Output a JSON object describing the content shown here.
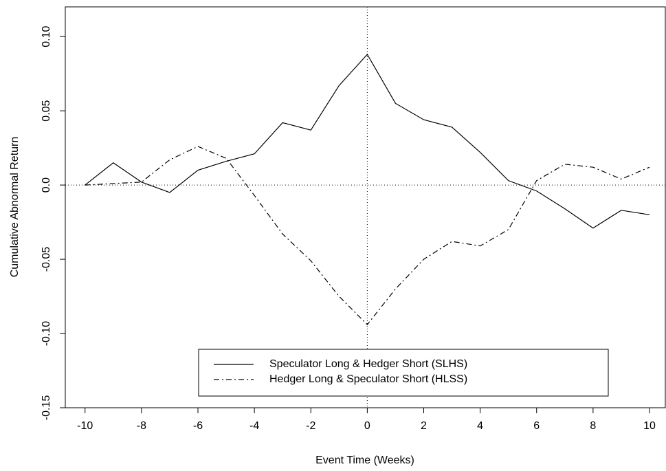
{
  "chart_data": {
    "type": "line",
    "x_label": "Event Time (Weeks)",
    "y_label": "Cumulative Abnormal Return",
    "x": [
      -10,
      -9,
      -8,
      -7,
      -6,
      -5,
      -4,
      -3,
      -2,
      -1,
      0,
      1,
      2,
      3,
      4,
      5,
      6,
      7,
      8,
      9,
      10
    ],
    "series": [
      {
        "name": "Speculator Long & Hedger Short (SLHS)",
        "color": "#000000",
        "dash": "solid",
        "values": [
          0,
          0.015,
          0.002,
          -0.005,
          0.01,
          0.016,
          0.021,
          0.042,
          0.037,
          0.067,
          0.088,
          0.055,
          0.044,
          0.039,
          0.022,
          0.003,
          -0.004,
          -0.016,
          -0.029,
          -0.017,
          -0.02
        ]
      },
      {
        "name": "Hedger Long & Speculator Short (HLSS)",
        "color": "#000000",
        "dash": "dashdot",
        "values": [
          0,
          0.001,
          0.002,
          0.017,
          0.026,
          0.018,
          -0.007,
          -0.033,
          -0.051,
          -0.075,
          -0.094,
          -0.07,
          -0.05,
          -0.038,
          -0.041,
          -0.03,
          0.003,
          0.014,
          0.012,
          0.004,
          0.012
        ]
      }
    ],
    "xlim": [
      -10.7,
      10.56
    ],
    "ylim": [
      -0.15,
      0.12
    ],
    "xticks": [
      -10,
      -8,
      -6,
      -4,
      -2,
      0,
      2,
      4,
      6,
      8,
      10
    ],
    "yticks": [
      {
        "value": -0.15,
        "label": "-0.15"
      },
      {
        "value": -0.1,
        "label": "-0.10"
      },
      -0.05,
      {
        "value": 0,
        "label": "0.0"
      },
      0.05,
      {
        "value": 0.1,
        "label": "0.10"
      }
    ],
    "reference_lines": {
      "x": 0,
      "y": 0
    },
    "legend": "bottom"
  }
}
